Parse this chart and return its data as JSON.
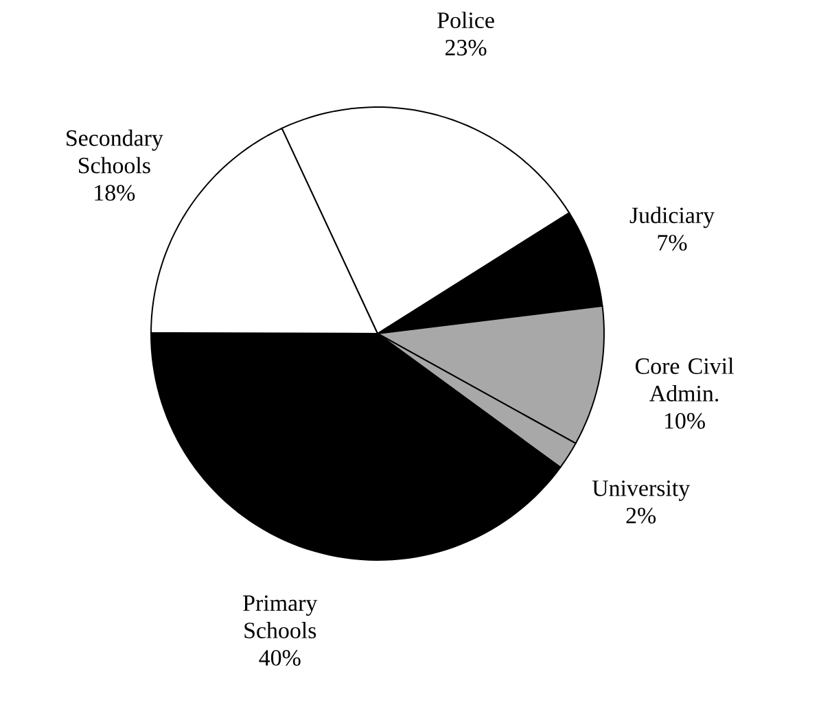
{
  "chart_data": {
    "type": "pie",
    "categories": [
      "Police",
      "Judiciary",
      "Core Civil Admin.",
      "University",
      "Primary Schools",
      "Secondary Schools"
    ],
    "values": [
      23,
      7,
      10,
      2,
      40,
      18
    ],
    "value_labels": [
      "23%",
      "7%",
      "10%",
      "2%",
      "40%",
      "18%"
    ],
    "colors": [
      "#ffffff",
      "#000000",
      "#a8a8a8",
      "#a8a8a8",
      "#000000",
      "#ffffff"
    ]
  }
}
